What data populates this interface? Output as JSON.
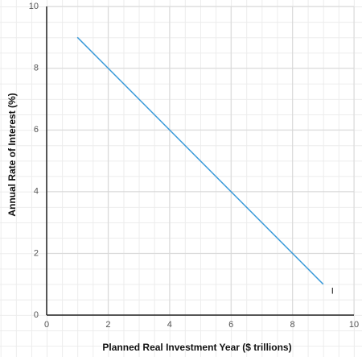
{
  "chart_data": {
    "type": "line",
    "x_label": "Planned Real Investment Year ($ trillions)",
    "y_label": "Annual Rate of Interest (%)",
    "x": [
      1,
      9
    ],
    "series": [
      {
        "name": "I",
        "color": "#3a9ad9",
        "values": [
          9,
          1
        ]
      }
    ],
    "xlim": [
      0,
      10
    ],
    "ylim": [
      0,
      10
    ],
    "xticks": [
      0,
      2,
      4,
      6,
      8,
      10
    ],
    "yticks": [
      0,
      2,
      4,
      6,
      8,
      10
    ],
    "grid": true
  }
}
